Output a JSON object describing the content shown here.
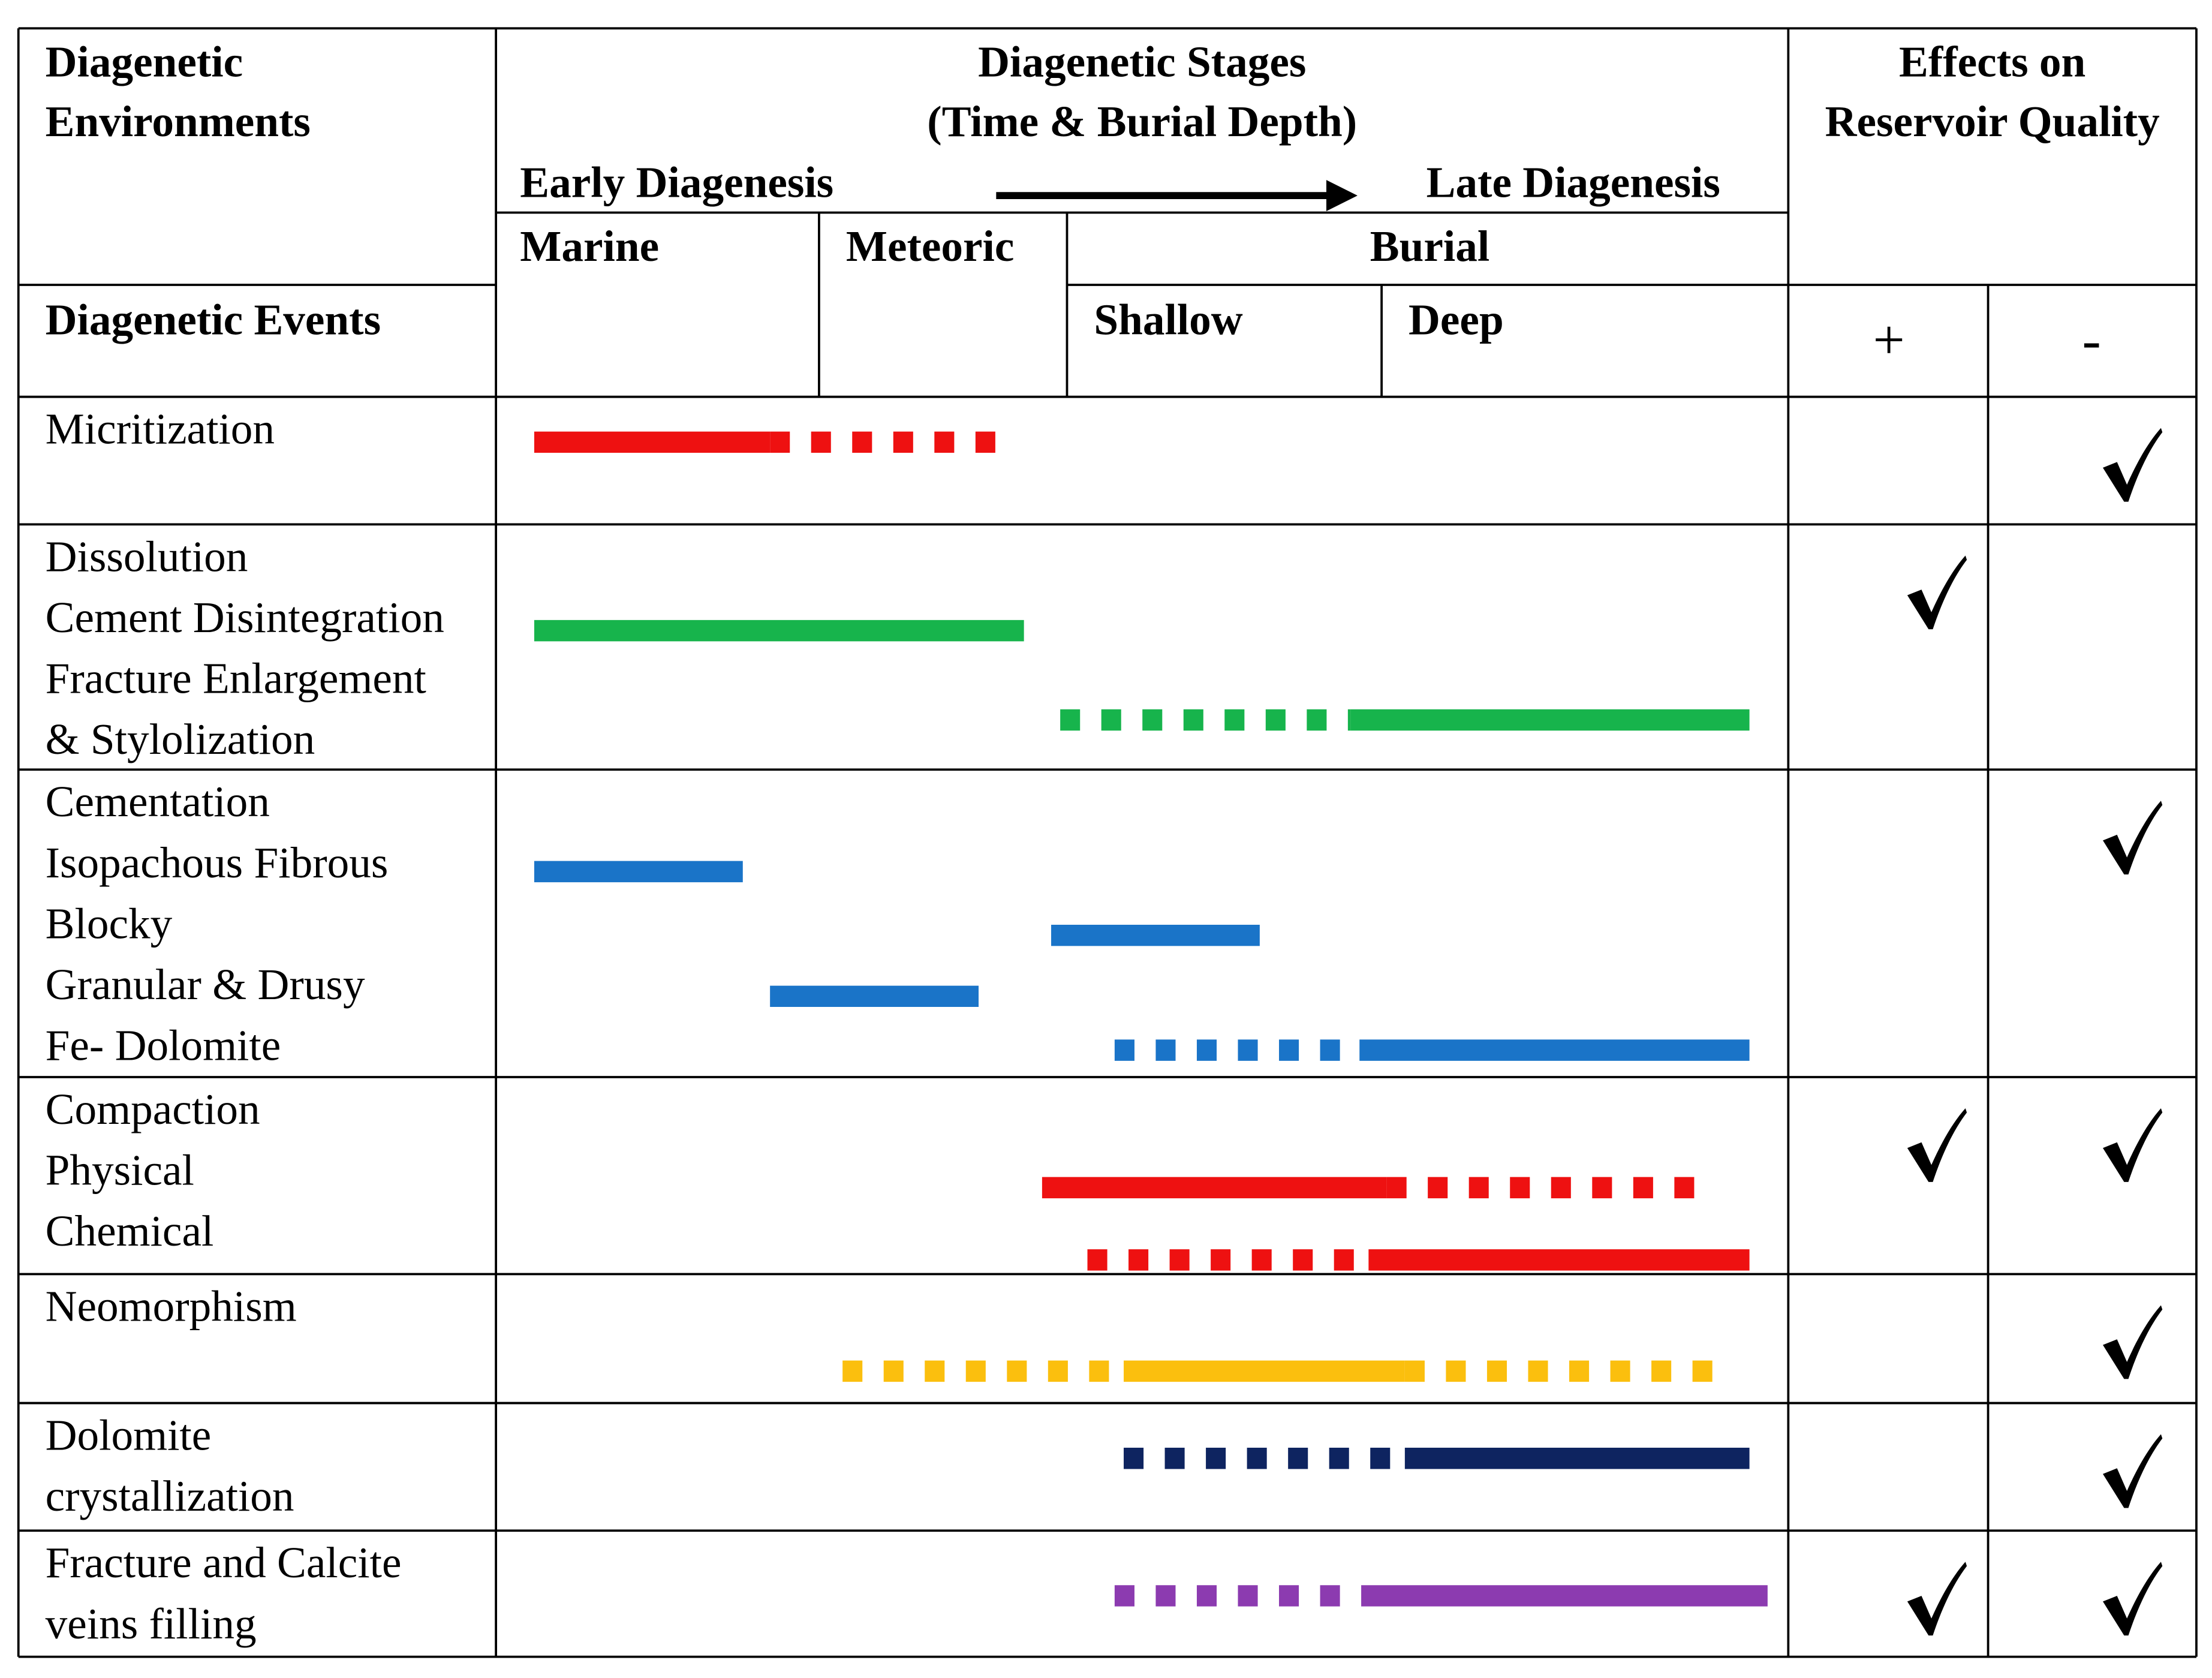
{
  "header": {
    "environments": [
      "Diagenetic",
      "Environments"
    ],
    "events": "Diagenetic Events",
    "stages": [
      "Diagenetic Stages",
      "(Time & Burial Depth)"
    ],
    "early": "Early Diagenesis",
    "late": "Late Diagenesis",
    "marine": "Marine",
    "meteoric": "Meteoric",
    "burial": "Burial",
    "shallow": "Shallow",
    "deep": "Deep",
    "effects": [
      "Effects on",
      "Reservoir Quality"
    ],
    "positive": "+",
    "negative": "-"
  },
  "colors": {
    "red": "#ee1111",
    "green": "#17b44c",
    "blue": "#1a74c8",
    "yellow": "#fbbf0e",
    "navy": "#0e2460",
    "purple": "#8c3bb0",
    "grid": "#000000"
  },
  "rows": [
    {
      "labels": [
        "Micritization"
      ],
      "positive": false,
      "negative": true,
      "bars": [
        {
          "color": "red",
          "from": 0.0,
          "to": 0.26,
          "style": "solid"
        },
        {
          "color": "red",
          "from": 0.26,
          "to": 0.52,
          "style": "dashed"
        }
      ]
    },
    {
      "labels": [
        "Dissolution",
        "Cement Disintegration",
        "Fracture Enlargement",
        "& Stylolization"
      ],
      "positive": true,
      "negative": false,
      "bars": [
        {
          "color": "green",
          "from": 0.0,
          "to": 0.54,
          "style": "solid"
        },
        {
          "color": "green",
          "from": 0.58,
          "to": 0.9,
          "style": "dashed"
        },
        {
          "color": "green",
          "from": 0.9,
          "to": 1.34,
          "style": "solid"
        }
      ]
    },
    {
      "labels": [
        "Cementation",
        "Isopachous Fibrous",
        "Blocky",
        "Granular & Drusy",
        "Fe- Dolomite"
      ],
      "positive": false,
      "negative": true,
      "bars": [
        {
          "color": "blue",
          "from": 0.0,
          "to": 0.23,
          "style": "solid"
        },
        {
          "color": "blue",
          "from": 0.57,
          "to": 0.8,
          "style": "solid"
        },
        {
          "color": "blue",
          "from": 0.26,
          "to": 0.49,
          "style": "solid"
        },
        {
          "color": "blue",
          "from": 0.64,
          "to": 0.91,
          "style": "dashed"
        },
        {
          "color": "blue",
          "from": 0.91,
          "to": 1.34,
          "style": "solid"
        }
      ]
    },
    {
      "labels": [
        "Compaction",
        "Physical",
        "Chemical"
      ],
      "positive": true,
      "negative": true,
      "bars": [
        {
          "color": "red",
          "from": 0.56,
          "to": 0.94,
          "style": "solid"
        },
        {
          "color": "red",
          "from": 0.94,
          "to": 1.3,
          "style": "dashed"
        },
        {
          "color": "red",
          "from": 0.61,
          "to": 0.92,
          "style": "dashed"
        },
        {
          "color": "red",
          "from": 0.92,
          "to": 1.34,
          "style": "solid"
        }
      ]
    },
    {
      "labels": [
        "Neomorphism"
      ],
      "positive": false,
      "negative": true,
      "bars": [
        {
          "color": "yellow",
          "from": 0.34,
          "to": 0.65,
          "style": "dashed"
        },
        {
          "color": "yellow",
          "from": 0.65,
          "to": 0.96,
          "style": "solid"
        },
        {
          "color": "yellow",
          "from": 0.96,
          "to": 1.32,
          "style": "dashed"
        }
      ]
    },
    {
      "labels": [
        "Dolomite",
        "crystallization"
      ],
      "positive": false,
      "negative": true,
      "bars": [
        {
          "color": "navy",
          "from": 0.65,
          "to": 0.96,
          "style": "dashed"
        },
        {
          "color": "navy",
          "from": 0.96,
          "to": 1.34,
          "style": "solid"
        }
      ]
    },
    {
      "labels": [
        "Fracture and Calcite",
        "veins filling"
      ],
      "positive": true,
      "negative": true,
      "bars": [
        {
          "color": "purple",
          "from": 0.64,
          "to": 0.93,
          "style": "dashed"
        },
        {
          "color": "purple",
          "from": 0.93,
          "to": 1.36,
          "style": "solid"
        }
      ]
    }
  ]
}
